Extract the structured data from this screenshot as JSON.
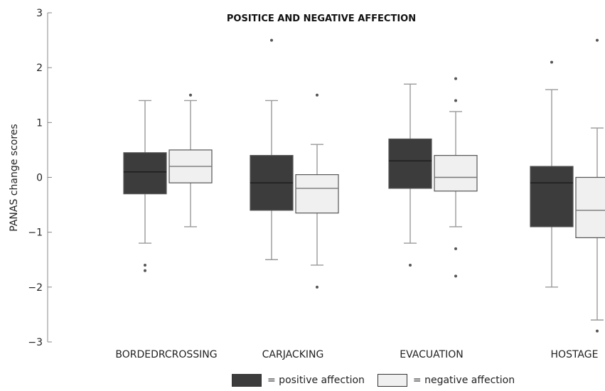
{
  "chart_data": {
    "type": "box",
    "title": "POSITICE AND NEGATIVE AFFECTION",
    "xlabel": "",
    "ylabel": "PANAS change scores",
    "ylim": [
      -3,
      3
    ],
    "yticks": [
      {
        "value": 3,
        "label": "3"
      },
      {
        "value": 2,
        "label": "2"
      },
      {
        "value": 1,
        "label": "1"
      },
      {
        "value": 0,
        "label": "0"
      },
      {
        "value": -1,
        "label": "−1"
      },
      {
        "value": -2,
        "label": "−2"
      },
      {
        "value": -3,
        "label": "−3"
      }
    ],
    "categories": [
      "BORDEDRCROSSING",
      "CARJACKING",
      "EVACUATION",
      "HOSTAGE"
    ],
    "series": [
      {
        "name": "positive affection",
        "color": "#3c3c3c",
        "boxes": [
          {
            "whisker_low": -1.2,
            "q1": -0.3,
            "median": 0.1,
            "q3": 0.45,
            "whisker_high": 1.4,
            "outliers": [
              -1.6,
              -1.7
            ]
          },
          {
            "whisker_low": -1.5,
            "q1": -0.6,
            "median": -0.1,
            "q3": 0.4,
            "whisker_high": 1.4,
            "outliers": [
              2.5
            ]
          },
          {
            "whisker_low": -1.2,
            "q1": -0.2,
            "median": 0.3,
            "q3": 0.7,
            "whisker_high": 1.7,
            "outliers": [
              -1.6
            ]
          },
          {
            "whisker_low": -2.0,
            "q1": -0.9,
            "median": -0.1,
            "q3": 0.2,
            "whisker_high": 1.6,
            "outliers": [
              2.1
            ]
          }
        ]
      },
      {
        "name": "negative affection",
        "color": "#f0f0f0",
        "boxes": [
          {
            "whisker_low": -0.9,
            "q1": -0.1,
            "median": 0.2,
            "q3": 0.5,
            "whisker_high": 1.4,
            "outliers": [
              1.5
            ]
          },
          {
            "whisker_low": -1.6,
            "q1": -0.65,
            "median": -0.2,
            "q3": 0.05,
            "whisker_high": 0.6,
            "outliers": [
              1.5,
              -2.0
            ]
          },
          {
            "whisker_low": -0.9,
            "q1": -0.25,
            "median": 0.0,
            "q3": 0.4,
            "whisker_high": 1.2,
            "outliers": [
              1.8,
              1.4,
              -1.3,
              -1.8
            ]
          },
          {
            "whisker_low": -2.6,
            "q1": -1.1,
            "median": -0.6,
            "q3": 0.0,
            "whisker_high": 0.9,
            "outliers": [
              2.5,
              -2.8
            ]
          }
        ]
      }
    ],
    "legend": {
      "placement": "bottom",
      "items": [
        {
          "label": "= positive affection",
          "color": "#3c3c3c"
        },
        {
          "label": "= negative affection",
          "color": "#f0f0f0"
        }
      ]
    },
    "grid": false
  }
}
